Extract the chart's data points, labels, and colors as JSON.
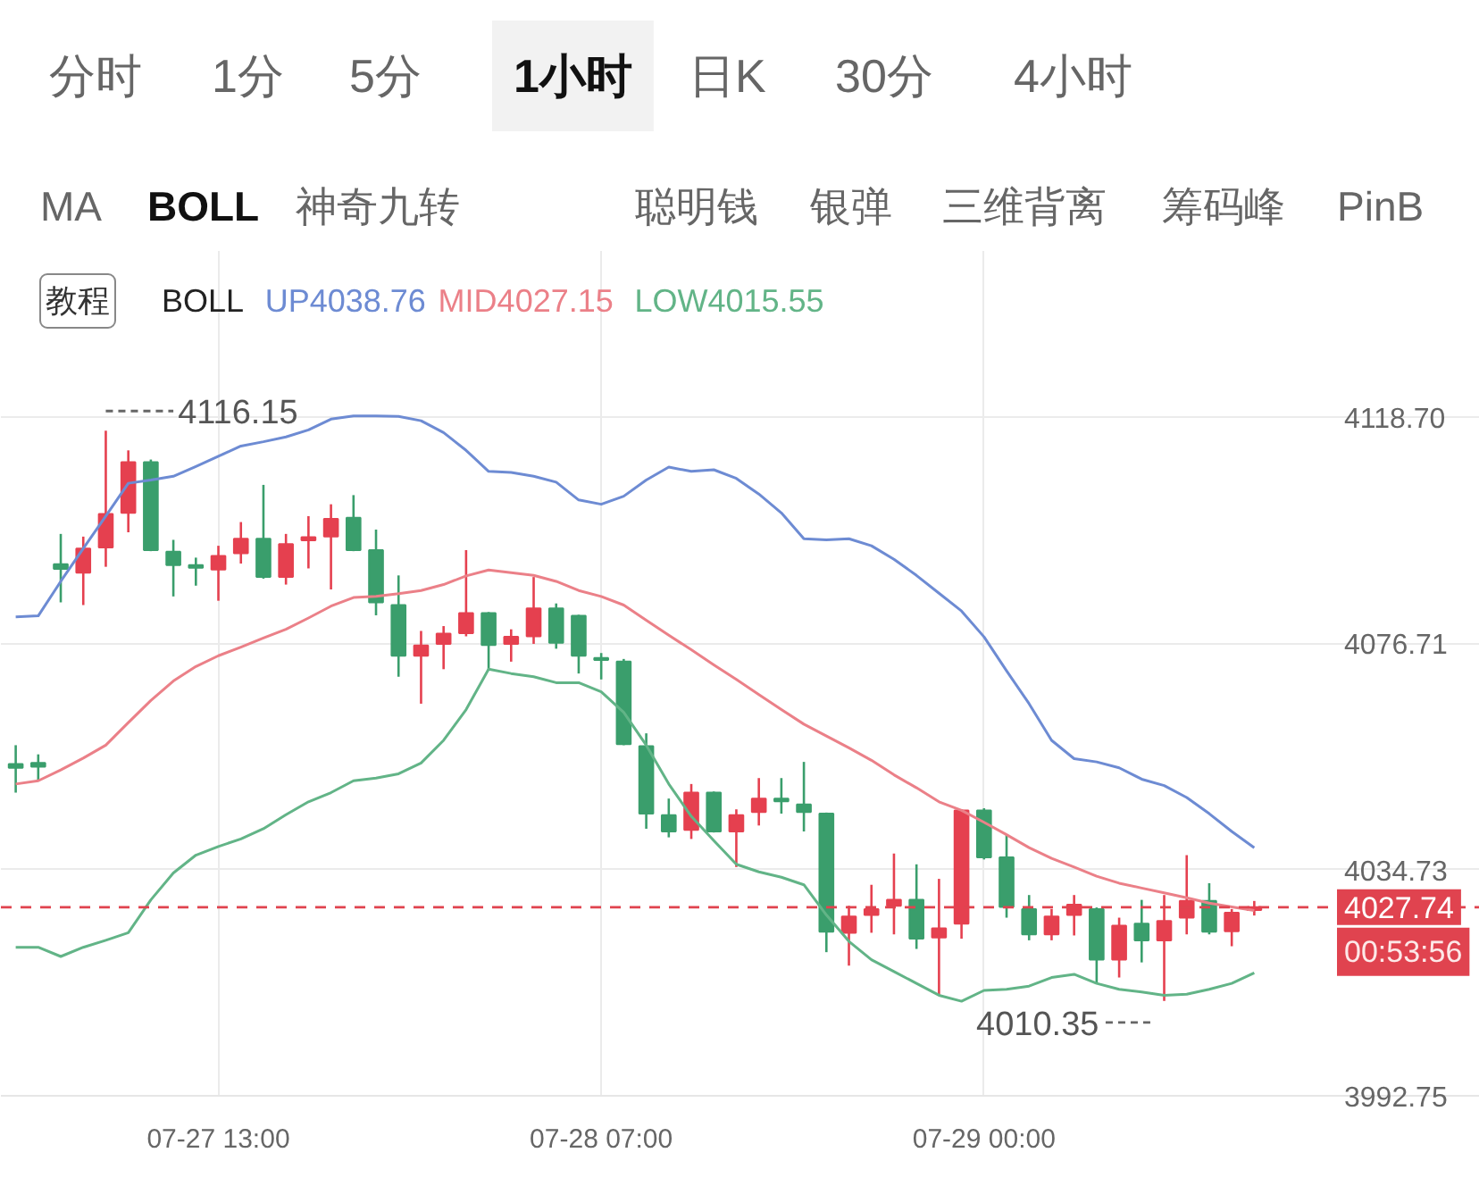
{
  "chart_data": {
    "type": "candlestick",
    "categories": [
      null,
      null,
      null,
      null,
      null,
      null,
      null,
      null,
      null,
      "07-27 13:00",
      null,
      null,
      null,
      null,
      null,
      null,
      null,
      null,
      null,
      null,
      null,
      null,
      null,
      null,
      null,
      null,
      "07-28 07:00",
      null,
      null,
      null,
      null,
      null,
      null,
      null,
      null,
      null,
      null,
      null,
      null,
      null,
      null,
      null,
      null,
      "07-29 00:00",
      null,
      null,
      null,
      null,
      null,
      null,
      null,
      null,
      null,
      null,
      null,
      null
    ],
    "ohlc": [
      [
        4054.3,
        4057.8,
        4049.0,
        4053.6
      ],
      [
        4054.5,
        4056.1,
        4051.2,
        4053.8
      ],
      [
        4091.4,
        4097.0,
        4084.3,
        4090.5
      ],
      [
        4089.8,
        4096.5,
        4083.8,
        4094.3
      ],
      [
        4094.5,
        4116.15,
        4090.9,
        4100.7
      ],
      [
        4100.9,
        4112.5,
        4097.3,
        4110.3
      ],
      [
        4110.3,
        4110.8,
        4093.8,
        4094.0
      ],
      [
        4093.7,
        4095.9,
        4085.4,
        4091.2
      ],
      [
        4091.2,
        4092.6,
        4087.4,
        4090.7
      ],
      [
        4090.4,
        4094.8,
        4084.6,
        4092.9
      ],
      [
        4093.4,
        4099.2,
        4091.5,
        4096.1
      ],
      [
        4096.1,
        4106.1,
        4088.7,
        4089.0
      ],
      [
        4089.0,
        4097.0,
        4087.6,
        4095.1
      ],
      [
        4095.8,
        4100.3,
        4090.6,
        4096.4
      ],
      [
        4096.5,
        4102.5,
        4086.7,
        4099.8
      ],
      [
        4100.0,
        4104.2,
        4093.8,
        4094.0
      ],
      [
        4094.0,
        4097.8,
        4081.9,
        4084.3
      ],
      [
        4083.8,
        4089.3,
        4070.5,
        4074.4
      ],
      [
        4074.4,
        4079.0,
        4065.5,
        4076.3
      ],
      [
        4076.6,
        4079.9,
        4071.9,
        4078.5
      ],
      [
        4078.6,
        4094.0,
        4078.0,
        4082.3
      ],
      [
        4082.3,
        4082.5,
        4071.6,
        4076.4
      ],
      [
        4076.6,
        4079.3,
        4073.3,
        4077.9
      ],
      [
        4078.0,
        4089.0,
        4076.6,
        4083.2
      ],
      [
        4083.2,
        4084.1,
        4075.7,
        4076.8
      ],
      [
        4081.8,
        4082.0,
        4071.1,
        4074.4
      ],
      [
        4074.0,
        4074.9,
        4070.0,
        4073.6
      ],
      [
        4073.3,
        4073.8,
        4057.8,
        4058.0
      ],
      [
        4057.6,
        4060.0,
        4042.3,
        4045.1
      ],
      [
        4044.8,
        4047.9,
        4040.7,
        4041.8
      ],
      [
        4042.1,
        4050.6,
        4040.4,
        4049.0
      ],
      [
        4049.0,
        4049.2,
        4041.6,
        4041.8
      ],
      [
        4041.8,
        4045.9,
        4035.2,
        4044.8
      ],
      [
        4045.4,
        4051.7,
        4042.9,
        4047.9
      ],
      [
        4047.9,
        4051.7,
        4045.1,
        4047.4
      ],
      [
        4046.8,
        4054.7,
        4041.8,
        4045.4
      ],
      [
        4045.1,
        4045.3,
        4019.4,
        4023.2
      ],
      [
        4023.0,
        4028.0,
        4016.9,
        4026.0
      ],
      [
        4026.3,
        4031.9,
        4023.0,
        4027.4
      ],
      [
        4028.0,
        4037.7,
        4022.7,
        4029.1
      ],
      [
        4029.1,
        4035.7,
        4020.0,
        4021.9
      ],
      [
        4022.1,
        4033.0,
        4011.4,
        4023.8
      ],
      [
        4024.7,
        4045.9,
        4021.9,
        4045.7
      ],
      [
        4045.7,
        4046.1,
        4036.6,
        4037.0
      ],
      [
        4037.0,
        4041.2,
        4025.8,
        4027.8
      ],
      [
        4027.4,
        4030.0,
        4021.6,
        4022.7
      ],
      [
        4022.7,
        4027.4,
        4021.6,
        4026.0
      ],
      [
        4026.3,
        4030.0,
        4022.5,
        4028.2
      ],
      [
        4027.4,
        4027.7,
        4013.6,
        4018.0
      ],
      [
        4018.0,
        4025.8,
        4014.7,
        4024.3
      ],
      [
        4024.7,
        4029.1,
        4017.5,
        4021.6
      ],
      [
        4021.6,
        4030.0,
        4010.35,
        4025.2
      ],
      [
        4025.8,
        4037.4,
        4022.7,
        4028.9
      ],
      [
        4028.9,
        4032.2,
        4022.7,
        4023.2
      ],
      [
        4023.3,
        4027.4,
        4020.5,
        4026.7
      ],
      [
        4027.2,
        4028.9,
        4026.2,
        4027.74
      ]
    ],
    "colors": [
      "#3a9e6c",
      "#3a9e6c",
      "#3a9e6c",
      "#e5404f",
      "#e5404f",
      "#e5404f",
      "#3a9e6c",
      "#3a9e6c",
      "#3a9e6c",
      "#e5404f",
      "#e5404f",
      "#3a9e6c",
      "#e5404f",
      "#e5404f",
      "#e5404f",
      "#3a9e6c",
      "#3a9e6c",
      "#3a9e6c",
      "#e5404f",
      "#e5404f",
      "#e5404f",
      "#3a9e6c",
      "#e5404f",
      "#e5404f",
      "#3a9e6c",
      "#3a9e6c",
      "#3a9e6c",
      "#3a9e6c",
      "#3a9e6c",
      "#3a9e6c",
      "#e5404f",
      "#3a9e6c",
      "#e5404f",
      "#e5404f",
      "#3a9e6c",
      "#3a9e6c",
      "#3a9e6c",
      "#e5404f",
      "#e5404f",
      "#e5404f",
      "#3a9e6c",
      "#e5404f",
      "#e5404f",
      "#3a9e6c",
      "#3a9e6c",
      "#3a9e6c",
      "#e5404f",
      "#e5404f",
      "#3a9e6c",
      "#e5404f",
      "#3a9e6c",
      "#e5404f",
      "#e5404f",
      "#3a9e6c",
      "#e5404f",
      "#e5404f"
    ],
    "series": [
      {
        "type": "line",
        "name": "UP4038.76",
        "color": "#6d8bd3",
        "values": [
          4081.6,
          4081.8,
          4088.2,
          4094.3,
          4100.3,
          4106.4,
          4107.0,
          4107.7,
          4109.5,
          4111.4,
          4113.3,
          4114.1,
          4115.0,
          4116.3,
          4118.3,
          4118.9,
          4118.9,
          4118.8,
          4118.0,
          4115.8,
          4112.5,
          4108.6,
          4108.4,
          4107.7,
          4106.6,
          4103.3,
          4102.5,
          4104.0,
          4107.0,
          4109.4,
          4108.6,
          4108.9,
          4107.3,
          4104.4,
          4100.9,
          4096.1,
          4095.9,
          4096.1,
          4094.8,
          4092.3,
          4089.3,
          4086.0,
          4082.7,
          4077.9,
          4071.6,
          4065.5,
          4058.7,
          4055.3,
          4054.7,
          4053.6,
          4051.5,
          4050.3,
          4048.1,
          4045.1,
          4041.8,
          4038.76
        ]
      },
      {
        "type": "line",
        "name": "MID4027.15",
        "color": "#eb8088",
        "values": [
          4050.6,
          4051.2,
          4053.2,
          4055.4,
          4057.8,
          4062.0,
          4066.1,
          4069.7,
          4072.4,
          4074.4,
          4076.0,
          4077.7,
          4079.3,
          4081.4,
          4083.6,
          4085.2,
          4085.4,
          4085.9,
          4086.5,
          4087.6,
          4089.2,
          4090.3,
          4089.8,
          4089.3,
          4088.2,
          4086.5,
          4085.4,
          4083.8,
          4081.0,
          4078.2,
          4075.5,
          4072.7,
          4070.0,
          4067.2,
          4064.4,
          4061.7,
          4059.5,
          4057.3,
          4055.0,
          4052.3,
          4049.9,
          4047.3,
          4045.7,
          4043.5,
          4041.2,
          4038.8,
          4036.8,
          4035.2,
          4033.5,
          4032.2,
          4031.3,
          4030.4,
          4029.5,
          4028.5,
          4027.8,
          4027.15
        ]
      },
      {
        "type": "line",
        "name": "LOW4015.55",
        "color": "#62b487",
        "values": [
          4020.3,
          4020.3,
          4018.6,
          4020.3,
          4021.6,
          4023.0,
          4029.1,
          4034.1,
          4037.4,
          4039.0,
          4040.4,
          4042.3,
          4044.9,
          4047.3,
          4049.0,
          4051.2,
          4051.7,
          4052.5,
          4054.5,
          4058.7,
          4064.4,
          4071.9,
          4071.1,
          4070.5,
          4069.4,
          4069.4,
          4067.7,
          4063.9,
          4057.8,
          4050.6,
          4044.6,
          4040.1,
          4035.7,
          4034.3,
          4033.3,
          4031.9,
          4026.3,
          4021.4,
          4018.0,
          4015.8,
          4013.6,
          4011.4,
          4010.3,
          4012.3,
          4012.5,
          4013.1,
          4014.7,
          4015.3,
          4013.6,
          4012.5,
          4012.0,
          4011.4,
          4011.6,
          4012.5,
          4013.6,
          4015.55
        ]
      }
    ],
    "legend": "top left",
    "legend_title": "BOLL",
    "ylim": [
      3992.75,
      4149.5
    ],
    "yticks": [
      3992.75,
      4034.73,
      4076.71,
      {
        "value": 4118.7,
        "label": "4118.70"
      }
    ],
    "grid": true,
    "ref_lines": [
      {
        "axis": "y",
        "value": 4027.74,
        "color": "#e0434f",
        "line_style": "dashed"
      }
    ],
    "annotations": [
      "分时",
      "1分",
      "5分",
      "1小时",
      "日K",
      "30分",
      "4小时",
      "MA",
      "BOLL",
      "神奇九转",
      "聪明钱",
      "银弹",
      "三维背离",
      "筹码峰",
      "PinB",
      "教程",
      "4027.74",
      "00:53:56",
      "4116.15",
      "4010.35"
    ]
  }
}
